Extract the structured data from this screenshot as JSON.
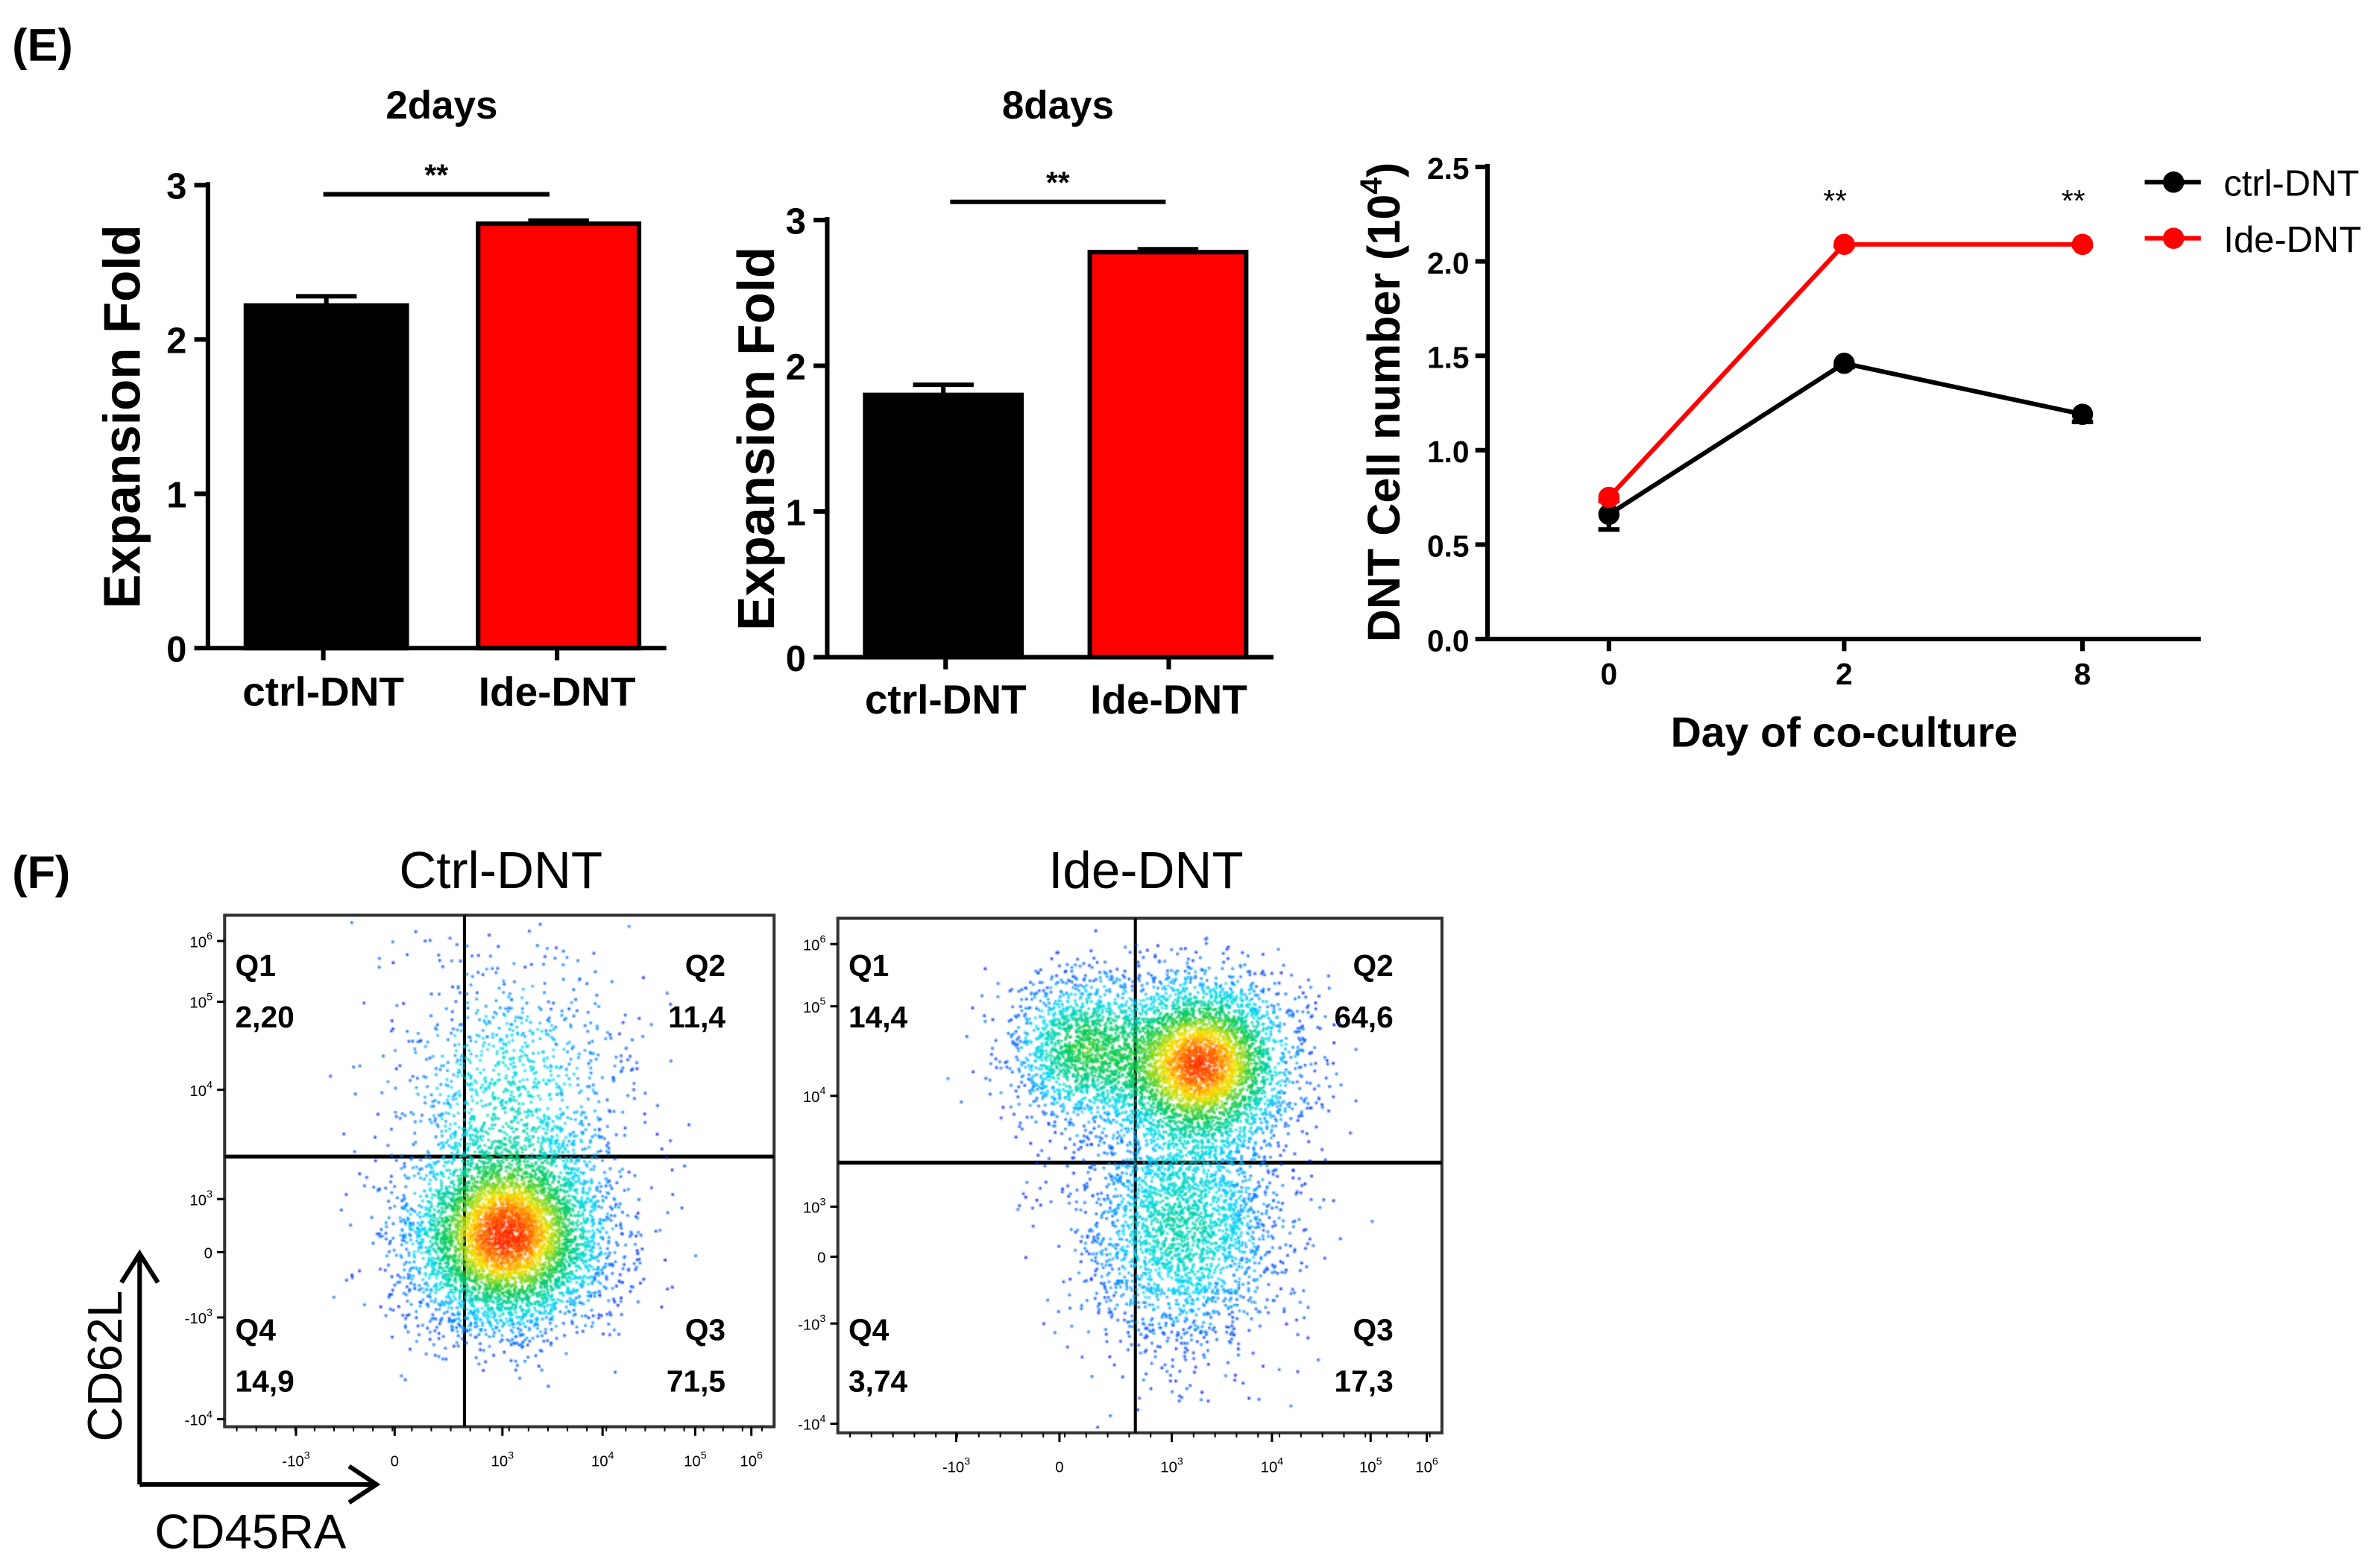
{
  "panels": {
    "e_label": "(E)",
    "f_label": "(F)"
  },
  "colors": {
    "ctrl": "#000000",
    "ide": "#ff0000",
    "axis": "#000000"
  },
  "chart_data": [
    {
      "type": "bar",
      "title": "2days",
      "ylabel": "Expansion Fold",
      "categories": [
        "ctrl-DNT",
        "Ide-DNT"
      ],
      "values": [
        2.22,
        2.75
      ],
      "errors": [
        0.06,
        0.02
      ],
      "ylim": [
        0,
        3
      ],
      "yticks": [
        "0",
        "1",
        "2",
        "3"
      ],
      "significance": "**"
    },
    {
      "type": "bar",
      "title": "8days",
      "ylabel": "Expansion Fold",
      "categories": [
        "ctrl-DNT",
        "Ide-DNT"
      ],
      "values": [
        1.8,
        2.78
      ],
      "errors": [
        0.07,
        0.02
      ],
      "ylim": [
        0,
        3
      ],
      "yticks": [
        "0",
        "1",
        "2",
        "3"
      ],
      "significance": "**"
    },
    {
      "type": "line",
      "xlabel": "Day of co-culture",
      "ylabel": "DNT Cell number (10",
      "ylabel_sup": "4",
      "ylabel_end": ")",
      "x": [
        "0",
        "2",
        "8"
      ],
      "ylim": [
        0,
        2.5
      ],
      "yticks": [
        "0.0",
        "0.5",
        "1.0",
        "1.5",
        "2.0",
        "2.5"
      ],
      "series": [
        {
          "name": "ctrl-DNT",
          "values": [
            0.66,
            1.46,
            1.19
          ],
          "errors": [
            0.08,
            0.02,
            0.04
          ]
        },
        {
          "name": "Ide-DNT",
          "values": [
            0.75,
            2.09,
            2.09
          ],
          "errors": [
            0.02,
            0.01,
            0.01
          ]
        }
      ],
      "annotations": [
        "",
        "**",
        "**"
      ],
      "legend": "top-right"
    },
    {
      "type": "scatter",
      "title": "Ctrl-DNT",
      "xlabel": "CD45RA",
      "ylabel": "CD62L",
      "quadrants": [
        {
          "name": "Q1",
          "value": "2,20"
        },
        {
          "name": "Q2",
          "value": "11,4"
        },
        {
          "name": "Q3",
          "value": "71,5"
        },
        {
          "name": "Q4",
          "value": "14,9"
        }
      ]
    },
    {
      "type": "scatter",
      "title": "Ide-DNT",
      "xlabel": "CD45RA",
      "ylabel": "CD62L",
      "quadrants": [
        {
          "name": "Q1",
          "value": "14,4"
        },
        {
          "name": "Q2",
          "value": "64,6"
        },
        {
          "name": "Q3",
          "value": "17,3"
        },
        {
          "name": "Q4",
          "value": "3,74"
        }
      ]
    }
  ],
  "flow_axis": {
    "y_ticks": [
      {
        "b": "10",
        "e": "6"
      },
      {
        "b": "10",
        "e": "5"
      },
      {
        "b": "10",
        "e": "4"
      },
      {
        "b": "10",
        "e": "3"
      },
      {
        "b": "0",
        "e": ""
      },
      {
        "b": "-10",
        "e": "3"
      },
      {
        "b": "-10",
        "e": "4"
      }
    ],
    "x_ticks": [
      {
        "b": "-10",
        "e": "3"
      },
      {
        "b": "0",
        "e": ""
      },
      {
        "b": "10",
        "e": "3"
      },
      {
        "b": "10",
        "e": "4"
      },
      {
        "b": "10",
        "e": "5"
      },
      {
        "b": "10",
        "e": "6"
      }
    ]
  }
}
